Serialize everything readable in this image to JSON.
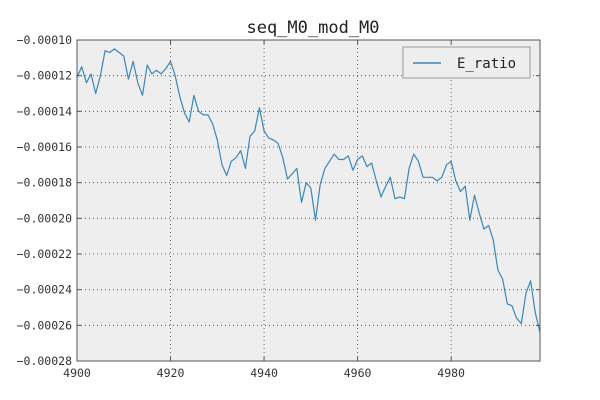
{
  "chart_data": {
    "type": "line",
    "title": "seq_M0_mod_M0",
    "xlabel": "",
    "ylabel": "",
    "xlim": [
      4900,
      4999
    ],
    "ylim": [
      -0.00028,
      -0.0001
    ],
    "x_ticks": [
      4900,
      4920,
      4940,
      4960,
      4980
    ],
    "x_tick_labels": [
      "4900",
      "4920",
      "4940",
      "4960",
      "4980"
    ],
    "y_ticks": [
      -0.0001,
      -0.00012,
      -0.00014,
      -0.00016,
      -0.00018,
      -0.0002,
      -0.00022,
      -0.00024,
      -0.00026,
      -0.00028
    ],
    "y_tick_labels": [
      "−0.00010",
      "−0.00012",
      "−0.00014",
      "−0.00016",
      "−0.00018",
      "−0.00020",
      "−0.00022",
      "−0.00024",
      "−0.00026",
      "−0.00028"
    ],
    "grid": true,
    "legend_position": "upper right",
    "background_color": "#eeeeee",
    "series": [
      {
        "name": "E_ratio",
        "color": "#3a87b8",
        "x": [
          4900,
          4901,
          4902,
          4903,
          4904,
          4905,
          4906,
          4907,
          4908,
          4909,
          4910,
          4911,
          4912,
          4913,
          4914,
          4915,
          4916,
          4917,
          4918,
          4919,
          4920,
          4921,
          4922,
          4923,
          4924,
          4925,
          4926,
          4927,
          4928,
          4929,
          4930,
          4931,
          4932,
          4933,
          4934,
          4935,
          4936,
          4937,
          4938,
          4939,
          4940,
          4941,
          4942,
          4943,
          4944,
          4945,
          4946,
          4947,
          4948,
          4949,
          4950,
          4951,
          4952,
          4953,
          4954,
          4955,
          4956,
          4957,
          4958,
          4959,
          4960,
          4961,
          4962,
          4963,
          4964,
          4965,
          4966,
          4967,
          4968,
          4969,
          4970,
          4971,
          4972,
          4973,
          4974,
          4975,
          4976,
          4977,
          4978,
          4979,
          4980,
          4981,
          4982,
          4983,
          4984,
          4985,
          4986,
          4987,
          4988,
          4989,
          4990,
          4991,
          4992,
          4993,
          4994,
          4995,
          4996,
          4997,
          4998,
          4999
        ],
        "y": [
          -0.000121,
          -0.000115,
          -0.000124,
          -0.000119,
          -0.00013,
          -0.00012,
          -0.000106,
          -0.000107,
          -0.000105,
          -0.000107,
          -0.000109,
          -0.000122,
          -0.000112,
          -0.000124,
          -0.000131,
          -0.000114,
          -0.000119,
          -0.000117,
          -0.000119,
          -0.000116,
          -0.000112,
          -0.00012,
          -0.000132,
          -0.000141,
          -0.000146,
          -0.000131,
          -0.00014,
          -0.000142,
          -0.000142,
          -0.000147,
          -0.000156,
          -0.00017,
          -0.000176,
          -0.000168,
          -0.000166,
          -0.000162,
          -0.000172,
          -0.000154,
          -0.000151,
          -0.000138,
          -0.000151,
          -0.000155,
          -0.000156,
          -0.000158,
          -0.000166,
          -0.000178,
          -0.000175,
          -0.000172,
          -0.000191,
          -0.00018,
          -0.000183,
          -0.000201,
          -0.000181,
          -0.000172,
          -0.000168,
          -0.000164,
          -0.000167,
          -0.000167,
          -0.000165,
          -0.000173,
          -0.000167,
          -0.000165,
          -0.000171,
          -0.000169,
          -0.000179,
          -0.000188,
          -0.000182,
          -0.000177,
          -0.000189,
          -0.000188,
          -0.000189,
          -0.000172,
          -0.000164,
          -0.000168,
          -0.000177,
          -0.000177,
          -0.000177,
          -0.000179,
          -0.000177,
          -0.00017,
          -0.000168,
          -0.000179,
          -0.000185,
          -0.000182,
          -0.000201,
          -0.000187,
          -0.000197,
          -0.000206,
          -0.000204,
          -0.000212,
          -0.000229,
          -0.000234,
          -0.000248,
          -0.000249,
          -0.000256,
          -0.000259,
          -0.000242,
          -0.000235,
          -0.000253,
          -0.000264
        ]
      }
    ]
  }
}
